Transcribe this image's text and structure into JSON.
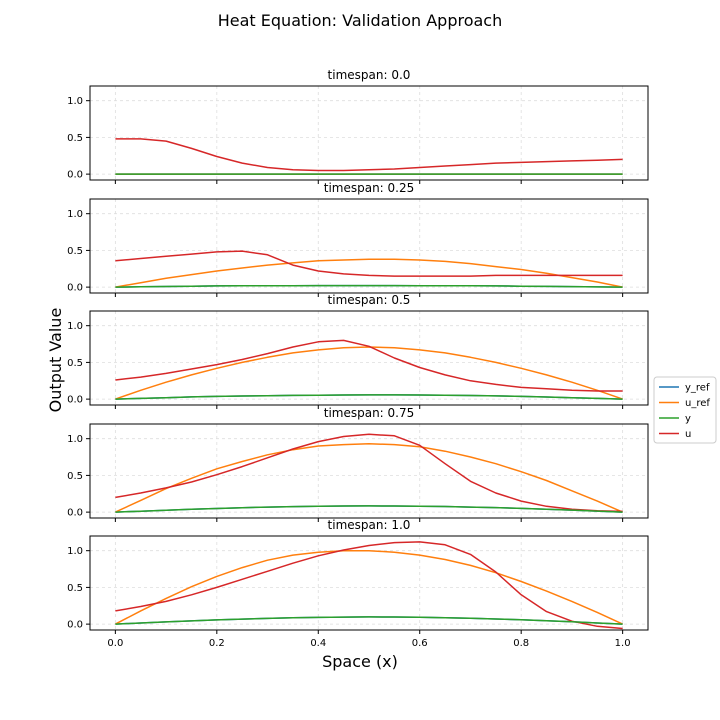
{
  "title": "Heat Equation: Validation Approach",
  "colors": {
    "y_ref": "#1f77b4",
    "u_ref": "#ff7f0e",
    "y": "#2ca02c",
    "u": "#d62728",
    "frame": "#000000",
    "grid": "#dddddd"
  },
  "chart_data": {
    "type": "line",
    "title": "Heat Equation: Validation Approach",
    "xlabel": "Space (x)",
    "ylabel": "Output Value",
    "xlim": [
      -0.05,
      1.05
    ],
    "ylim": [
      -0.08,
      1.2
    ],
    "xticks": [
      "0.0",
      "0.2",
      "0.4",
      "0.6",
      "0.8",
      "1.0"
    ],
    "yticks": [
      "0.0",
      "0.5",
      "1.0"
    ],
    "grid": true,
    "legend": {
      "position": "right-center",
      "entries": [
        "y_ref",
        "u_ref",
        "y",
        "u"
      ]
    },
    "x": [
      0,
      0.05,
      0.1,
      0.15,
      0.2,
      0.25,
      0.3,
      0.35,
      0.4,
      0.45,
      0.5,
      0.55,
      0.6,
      0.65,
      0.7,
      0.75,
      0.8,
      0.85,
      0.9,
      0.95,
      1.0
    ],
    "panels": [
      {
        "title": "timespan: 0.0",
        "series": [
          {
            "name": "y_ref",
            "values": [
              0,
              0,
              0,
              0,
              0,
              0,
              0,
              0,
              0,
              0,
              0,
              0,
              0,
              0,
              0,
              0,
              0,
              0,
              0,
              0,
              0
            ]
          },
          {
            "name": "u_ref",
            "values": [
              0,
              0,
              0,
              0,
              0,
              0,
              0,
              0,
              0,
              0,
              0,
              0,
              0,
              0,
              0,
              0,
              0,
              0,
              0,
              0,
              0
            ]
          },
          {
            "name": "y",
            "values": [
              0,
              0,
              0,
              0,
              0,
              0,
              0,
              0,
              0,
              0,
              0,
              0,
              0,
              0,
              0,
              0,
              0,
              0,
              0,
              0,
              0
            ]
          },
          {
            "name": "u",
            "values": [
              0.48,
              0.48,
              0.45,
              0.35,
              0.24,
              0.15,
              0.09,
              0.06,
              0.05,
              0.05,
              0.06,
              0.07,
              0.09,
              0.11,
              0.13,
              0.15,
              0.16,
              0.17,
              0.18,
              0.19,
              0.2
            ]
          }
        ]
      },
      {
        "title": "timespan: 0.25",
        "series": [
          {
            "name": "y_ref",
            "values": [
              0,
              0.004,
              0.008,
              0.012,
              0.016,
              0.018,
              0.019,
              0.02,
              0.021,
              0.021,
              0.021,
              0.021,
              0.02,
              0.019,
              0.018,
              0.016,
              0.013,
              0.01,
              0.007,
              0.003,
              0
            ]
          },
          {
            "name": "u_ref",
            "values": [
              0,
              0.06,
              0.12,
              0.17,
              0.22,
              0.26,
              0.3,
              0.33,
              0.36,
              0.37,
              0.38,
              0.38,
              0.37,
              0.35,
              0.32,
              0.28,
              0.24,
              0.19,
              0.13,
              0.07,
              0
            ]
          },
          {
            "name": "y",
            "values": [
              0,
              0.004,
              0.008,
              0.012,
              0.016,
              0.018,
              0.019,
              0.02,
              0.021,
              0.021,
              0.021,
              0.021,
              0.02,
              0.019,
              0.018,
              0.016,
              0.013,
              0.01,
              0.007,
              0.003,
              0
            ]
          },
          {
            "name": "u",
            "values": [
              0.36,
              0.39,
              0.42,
              0.45,
              0.48,
              0.49,
              0.44,
              0.3,
              0.22,
              0.18,
              0.16,
              0.15,
              0.15,
              0.15,
              0.15,
              0.16,
              0.16,
              0.16,
              0.16,
              0.16,
              0.16
            ]
          }
        ]
      },
      {
        "title": "timespan: 0.5",
        "series": [
          {
            "name": "y_ref",
            "values": [
              0,
              0.01,
              0.02,
              0.03,
              0.037,
              0.042,
              0.047,
              0.051,
              0.054,
              0.056,
              0.057,
              0.057,
              0.056,
              0.053,
              0.049,
              0.044,
              0.037,
              0.029,
              0.02,
              0.01,
              0
            ]
          },
          {
            "name": "u_ref",
            "values": [
              0,
              0.12,
              0.23,
              0.33,
              0.42,
              0.5,
              0.57,
              0.63,
              0.67,
              0.7,
              0.71,
              0.7,
              0.67,
              0.63,
              0.57,
              0.5,
              0.42,
              0.33,
              0.23,
              0.12,
              0
            ]
          },
          {
            "name": "y",
            "values": [
              0,
              0.01,
              0.02,
              0.03,
              0.037,
              0.042,
              0.047,
              0.051,
              0.054,
              0.056,
              0.057,
              0.057,
              0.056,
              0.053,
              0.049,
              0.044,
              0.037,
              0.029,
              0.02,
              0.01,
              0
            ]
          },
          {
            "name": "u",
            "values": [
              0.26,
              0.3,
              0.35,
              0.41,
              0.47,
              0.54,
              0.62,
              0.71,
              0.78,
              0.8,
              0.72,
              0.56,
              0.43,
              0.33,
              0.25,
              0.2,
              0.16,
              0.14,
              0.12,
              0.11,
              0.11
            ]
          }
        ]
      },
      {
        "title": "timespan: 0.75",
        "series": [
          {
            "name": "y_ref",
            "values": [
              0,
              0.013,
              0.026,
              0.038,
              0.05,
              0.06,
              0.068,
              0.075,
              0.08,
              0.083,
              0.085,
              0.084,
              0.081,
              0.076,
              0.069,
              0.061,
              0.051,
              0.04,
              0.028,
              0.014,
              0
            ]
          },
          {
            "name": "u_ref",
            "values": [
              0,
              0.16,
              0.32,
              0.46,
              0.59,
              0.69,
              0.78,
              0.85,
              0.9,
              0.92,
              0.93,
              0.92,
              0.89,
              0.83,
              0.75,
              0.66,
              0.55,
              0.43,
              0.29,
              0.15,
              0
            ]
          },
          {
            "name": "y",
            "values": [
              0,
              0.013,
              0.026,
              0.038,
              0.05,
              0.06,
              0.068,
              0.075,
              0.08,
              0.083,
              0.085,
              0.084,
              0.081,
              0.076,
              0.069,
              0.061,
              0.051,
              0.04,
              0.028,
              0.014,
              0
            ]
          },
          {
            "name": "u",
            "values": [
              0.2,
              0.26,
              0.33,
              0.41,
              0.51,
              0.62,
              0.74,
              0.86,
              0.96,
              1.03,
              1.06,
              1.04,
              0.91,
              0.66,
              0.42,
              0.26,
              0.15,
              0.08,
              0.04,
              0.02,
              0.01
            ]
          }
        ]
      },
      {
        "title": "timespan: 1.0",
        "series": [
          {
            "name": "y_ref",
            "values": [
              0,
              0.015,
              0.03,
              0.044,
              0.057,
              0.068,
              0.078,
              0.086,
              0.092,
              0.096,
              0.098,
              0.097,
              0.094,
              0.088,
              0.08,
              0.07,
              0.059,
              0.046,
              0.032,
              0.016,
              0
            ]
          },
          {
            "name": "u_ref",
            "values": [
              0,
              0.18,
              0.35,
              0.51,
              0.65,
              0.77,
              0.87,
              0.94,
              0.98,
              1.0,
              1.0,
              0.98,
              0.94,
              0.88,
              0.8,
              0.7,
              0.58,
              0.45,
              0.31,
              0.16,
              0
            ]
          },
          {
            "name": "y",
            "values": [
              0,
              0.015,
              0.03,
              0.044,
              0.057,
              0.068,
              0.078,
              0.086,
              0.092,
              0.096,
              0.098,
              0.097,
              0.094,
              0.088,
              0.08,
              0.07,
              0.059,
              0.046,
              0.032,
              0.016,
              0
            ]
          },
          {
            "name": "u",
            "values": [
              0.18,
              0.24,
              0.31,
              0.4,
              0.5,
              0.61,
              0.72,
              0.83,
              0.93,
              1.01,
              1.07,
              1.11,
              1.12,
              1.08,
              0.95,
              0.71,
              0.4,
              0.17,
              0.04,
              -0.03,
              -0.06
            ]
          }
        ]
      }
    ]
  }
}
